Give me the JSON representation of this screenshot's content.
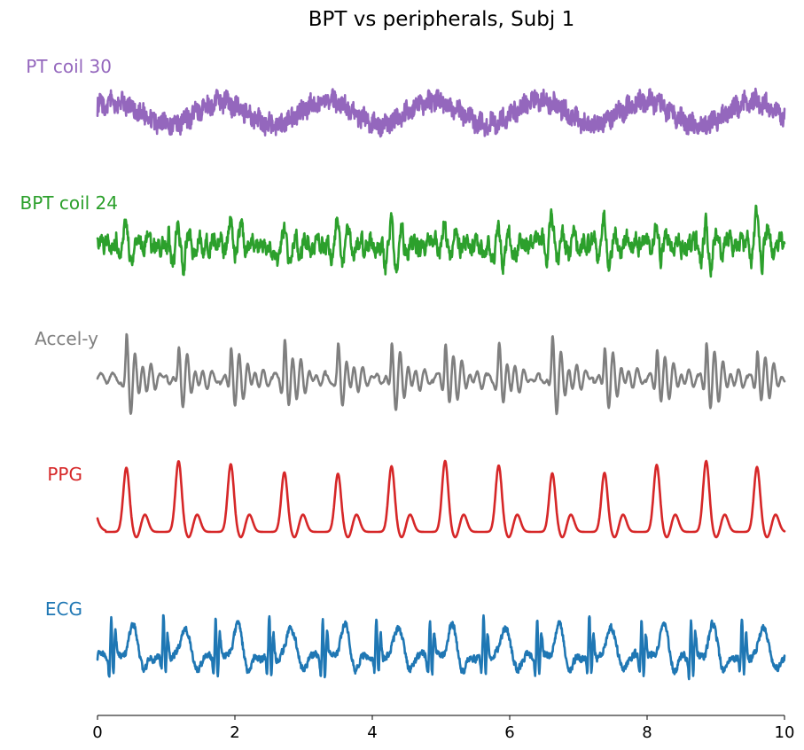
{
  "chart_data": {
    "type": "line",
    "title": "BPT vs peripherals, Subj 1",
    "xlabel": "",
    "ylabel": "",
    "xlim": [
      0,
      10
    ],
    "xticks": [
      0,
      2,
      4,
      6,
      8,
      10
    ],
    "grid": false,
    "legend": "none",
    "beat_times": [
      0.42,
      1.18,
      1.94,
      2.72,
      3.5,
      4.28,
      5.06,
      5.84,
      6.62,
      7.38,
      8.14,
      8.86,
      9.6
    ],
    "resp_period_s": 1.55,
    "series": [
      {
        "name": "PT coil 30",
        "color": "#9467bd",
        "signal": "respiratory-like slow oscillation with high-frequency noise"
      },
      {
        "name": "BPT coil 24",
        "color": "#2ca02c",
        "signal": "cardiac-synchronous oscillation with noise"
      },
      {
        "name": "Accel-y",
        "color": "#7f7f7f",
        "signal": "damped oscillation following each heartbeat"
      },
      {
        "name": "PPG",
        "color": "#d62728",
        "signal": "pulse peak after each heartbeat with dicrotic bump"
      },
      {
        "name": "ECG",
        "color": "#1f77b4",
        "signal": "QRS complex, T-wave and baseline per heartbeat"
      }
    ]
  }
}
